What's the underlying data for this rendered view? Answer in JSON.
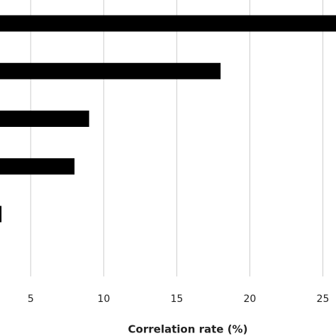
{
  "chart_data": {
    "type": "barh",
    "x_label": "Correlation rate (%)",
    "categories": [
      null,
      null,
      null,
      null,
      null
    ],
    "values": [
      26,
      18,
      9,
      8,
      3
    ],
    "color": "#000000",
    "xlim": [
      2.9,
      25.9
    ],
    "xticks": [
      5,
      10,
      15,
      20,
      25
    ],
    "grid": true
  }
}
